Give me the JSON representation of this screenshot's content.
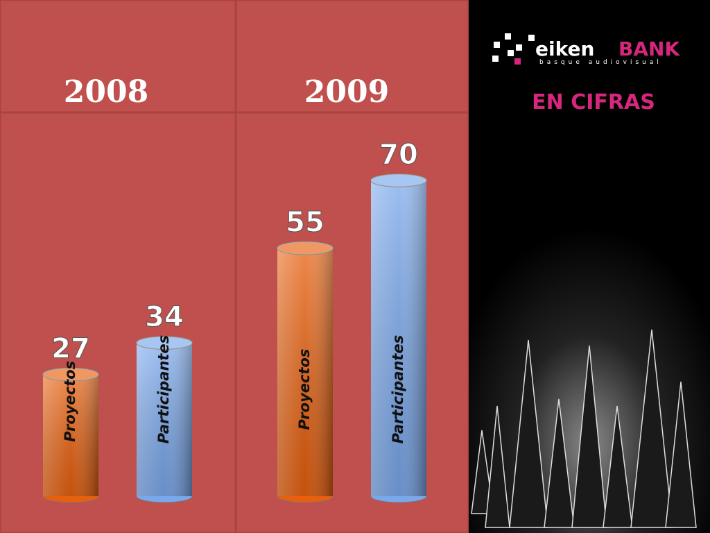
{
  "brand": {
    "name": "eiken",
    "name_strong": "BANK",
    "tagline": "basque audiovisual"
  },
  "heading": "EN CIFRAS",
  "chart_data": {
    "type": "bar",
    "categories": [
      "2008",
      "2009"
    ],
    "series": [
      {
        "name": "Proyectos",
        "color": "#e8600e",
        "values": [
          27,
          55
        ]
      },
      {
        "name": "Participantes",
        "color": "#7aa8ec",
        "values": [
          34,
          70
        ]
      }
    ]
  }
}
